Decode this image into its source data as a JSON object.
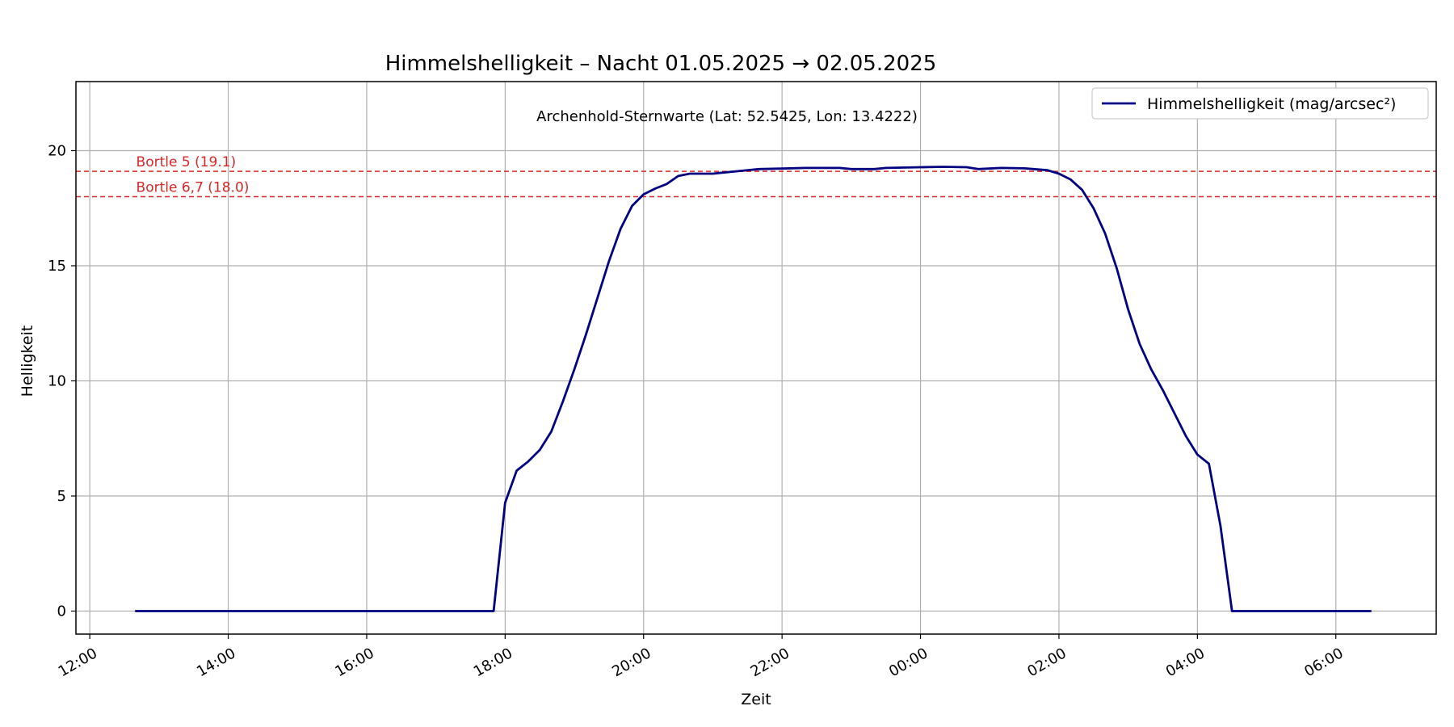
{
  "chart_data": {
    "type": "line",
    "title": "Himmelshelligkeit – Nacht 01.05.2025 → 02.05.2025",
    "subtitle": "Archenhold-Sternwarte (Lat: 52.5425, Lon: 13.4222)",
    "xlabel": "Zeit",
    "ylabel": "Helligkeit",
    "x_range_hours": [
      11.8,
      31.45
    ],
    "ylim": [
      -1,
      23
    ],
    "grid": true,
    "legend_position": "top-right",
    "x_ticks": [
      {
        "value": 12,
        "label": "12:00"
      },
      {
        "value": 14,
        "label": "14:00"
      },
      {
        "value": 16,
        "label": "16:00"
      },
      {
        "value": 18,
        "label": "18:00"
      },
      {
        "value": 20,
        "label": "20:00"
      },
      {
        "value": 22,
        "label": "22:00"
      },
      {
        "value": 24,
        "label": "00:00"
      },
      {
        "value": 26,
        "label": "02:00"
      },
      {
        "value": 28,
        "label": "04:00"
      },
      {
        "value": 30,
        "label": "06:00"
      }
    ],
    "y_ticks": [
      0,
      5,
      10,
      15,
      20
    ],
    "reference_lines": [
      {
        "label": "Bortle 5 (19.1)",
        "value": 19.1,
        "color": "#d62728"
      },
      {
        "label": "Bortle 6,7 (18.0)",
        "value": 18.0,
        "color": "#d62728"
      }
    ],
    "series": [
      {
        "name": "Himmelshelligkeit (mag/arcsec²)",
        "color": "#000080",
        "points": [
          [
            "12:40",
            0
          ],
          [
            "13:00",
            0
          ],
          [
            "14:00",
            0
          ],
          [
            "15:00",
            0
          ],
          [
            "16:00",
            0
          ],
          [
            "17:00",
            0
          ],
          [
            "17:50",
            0
          ],
          [
            "18:00",
            4.7
          ],
          [
            "18:10",
            6.1
          ],
          [
            "18:20",
            6.5
          ],
          [
            "18:30",
            7.0
          ],
          [
            "18:40",
            7.8
          ],
          [
            "18:50",
            9.1
          ],
          [
            "19:00",
            10.5
          ],
          [
            "19:10",
            12.0
          ],
          [
            "19:20",
            13.6
          ],
          [
            "19:30",
            15.2
          ],
          [
            "19:40",
            16.6
          ],
          [
            "19:50",
            17.6
          ],
          [
            "20:00",
            18.1
          ],
          [
            "20:10",
            18.35
          ],
          [
            "20:20",
            18.55
          ],
          [
            "20:30",
            18.9
          ],
          [
            "20:40",
            19.0
          ],
          [
            "21:00",
            19.0
          ],
          [
            "21:20",
            19.1
          ],
          [
            "21:40",
            19.2
          ],
          [
            "22:00",
            19.22
          ],
          [
            "22:20",
            19.25
          ],
          [
            "22:50",
            19.25
          ],
          [
            "23:00",
            19.2
          ],
          [
            "23:20",
            19.2
          ],
          [
            "23:30",
            19.25
          ],
          [
            "00:00",
            19.28
          ],
          [
            "00:20",
            19.3
          ],
          [
            "00:40",
            19.28
          ],
          [
            "00:50",
            19.2
          ],
          [
            "01:10",
            19.25
          ],
          [
            "01:30",
            19.23
          ],
          [
            "01:50",
            19.15
          ],
          [
            "02:00",
            19.0
          ],
          [
            "02:10",
            18.75
          ],
          [
            "02:20",
            18.3
          ],
          [
            "02:30",
            17.5
          ],
          [
            "02:40",
            16.4
          ],
          [
            "02:50",
            14.9
          ],
          [
            "03:00",
            13.1
          ],
          [
            "03:10",
            11.6
          ],
          [
            "03:20",
            10.5
          ],
          [
            "03:30",
            9.6
          ],
          [
            "03:40",
            8.6
          ],
          [
            "03:50",
            7.6
          ],
          [
            "04:00",
            6.8
          ],
          [
            "04:10",
            6.4
          ],
          [
            "04:20",
            3.7
          ],
          [
            "04:30",
            0
          ],
          [
            "05:00",
            0
          ],
          [
            "06:00",
            0
          ],
          [
            "06:30",
            0
          ]
        ]
      }
    ]
  }
}
